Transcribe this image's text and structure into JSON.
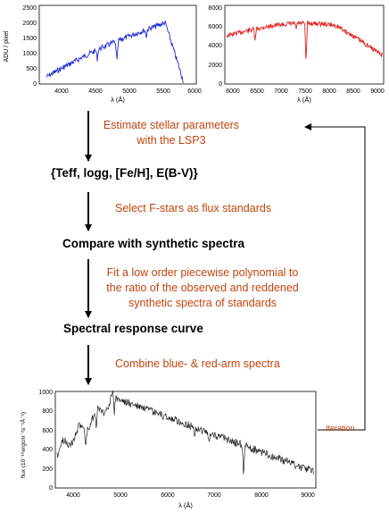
{
  "panels": {
    "blue": {
      "ylabel": "ADU / pixel",
      "xlabel": "λ (Å)",
      "color": "#1f2ad6",
      "xticks": [
        "4000",
        "4500",
        "5000",
        "5500",
        "6000"
      ],
      "yticks": [
        "0",
        "500",
        "1000",
        "1500",
        "2000",
        "2500"
      ]
    },
    "red": {
      "xlabel": "λ (Å)",
      "color": "#e02020",
      "xticks": [
        "6000",
        "6500",
        "7000",
        "7500",
        "8000",
        "8500",
        "9000"
      ],
      "yticks": [
        "0",
        "2000",
        "4000",
        "6000",
        "8000"
      ]
    },
    "final": {
      "ylabel": "flux (10⁻¹⁶ergcm⁻²s⁻¹Å⁻¹)",
      "xlabel": "λ (Å)",
      "color": "#222222",
      "xticks": [
        "4000",
        "5000",
        "6000",
        "7000",
        "8000",
        "9000"
      ],
      "yticks": [
        "0",
        "200",
        "400",
        "600",
        "800",
        "1000"
      ]
    }
  },
  "flow": {
    "step1_note_line1": "Estimate stellar parameters",
    "step1_note_line2": "with the LSP3",
    "params": "{Teff, logg, [Fe/H], E(B-V)}",
    "step2_note": "Select F-stars as flux standards",
    "compare": "Compare with synthetic spectra",
    "step3_note_line1": "Fit a low order piecewise polynomial to",
    "step3_note_line2": "the ratio of the observed and reddened",
    "step3_note_line3": "synthetic spectra of standards",
    "response": "Spectral response curve",
    "step4_note": "Combine blue- & red-arm spectra",
    "iteration": "Iteration"
  },
  "colors": {
    "note": "#c0440f",
    "arrow": "#000000"
  }
}
